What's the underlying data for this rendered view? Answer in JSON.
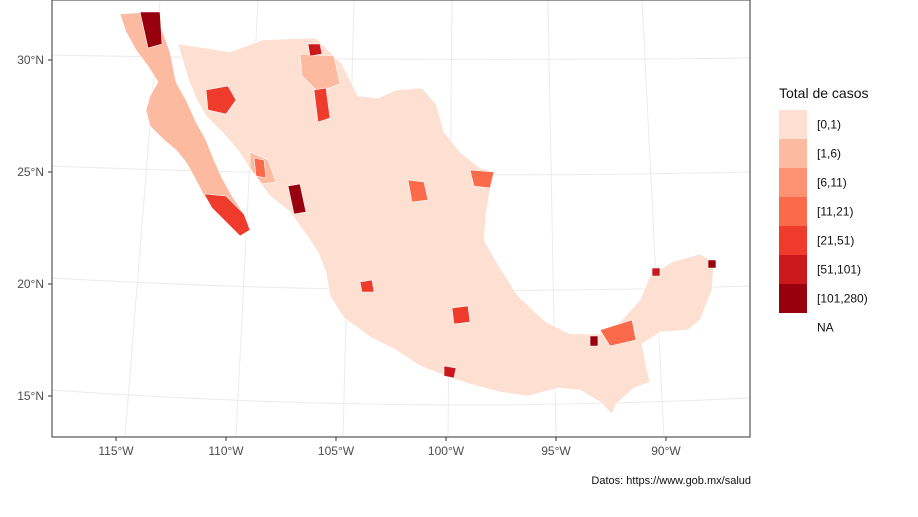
{
  "map": {
    "axes": {
      "lon_ticks": [
        "115°W",
        "110°W",
        "105°W",
        "100°W",
        "95°W",
        "90°W"
      ],
      "lat_ticks": [
        "30°N",
        "25°N",
        "20°N",
        "15°N"
      ]
    },
    "legend": {
      "title": "Total de casos",
      "items": [
        {
          "label": "[0,1)",
          "color": "#fee0d2"
        },
        {
          "label": "[1,6)",
          "color": "#fcbba1"
        },
        {
          "label": "[6,11)",
          "color": "#fc9272"
        },
        {
          "label": "[11,21)",
          "color": "#fb6a4a"
        },
        {
          "label": "[21,51)",
          "color": "#ef3b2c"
        },
        {
          "label": "[51,101)",
          "color": "#cb181d"
        },
        {
          "label": "[101,280)",
          "color": "#99000d"
        }
      ],
      "na_label": "NA"
    },
    "caption": "Datos: https://www.gob.mx/salud"
  }
}
